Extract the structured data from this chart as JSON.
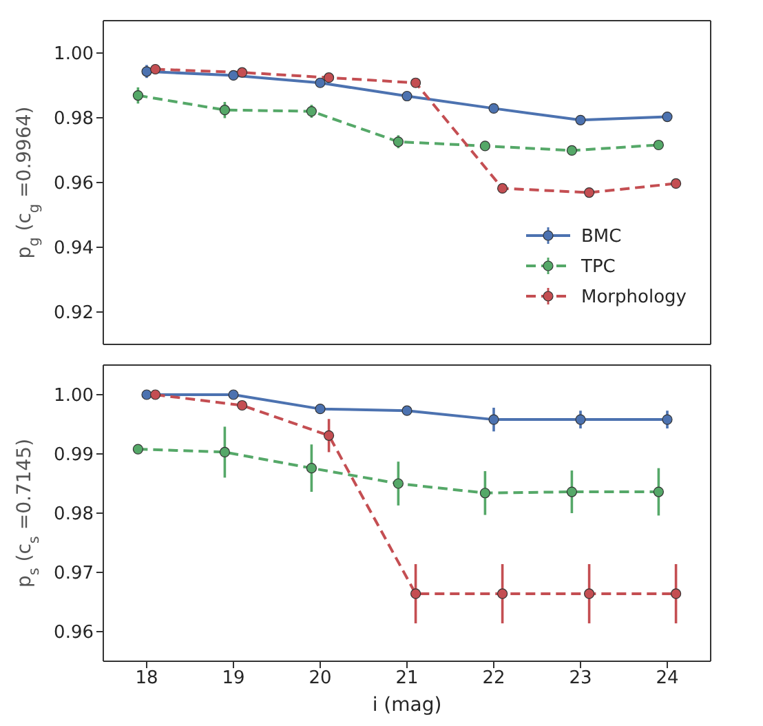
{
  "chart_data": [
    {
      "type": "line",
      "ylabel": "p$_{g}$ (c$_{g}$ =0.9964)",
      "xlim": [
        17.5,
        24.5
      ],
      "xticks": [
        18,
        19,
        20,
        21,
        22,
        23,
        24
      ],
      "ylim": [
        0.91,
        1.01
      ],
      "yticks": [
        0.92,
        0.94,
        0.96,
        0.98,
        {
          "value": 1,
          "label": "1.00"
        }
      ],
      "tick_labels": "y",
      "legend": "bottom right",
      "marker": "circle",
      "series": [
        {
          "name": "BMC",
          "color": "#4c72b0",
          "line_style": "solid",
          "x": [
            18,
            19,
            20,
            21,
            22,
            23,
            24
          ],
          "values": [
            0.9943,
            0.9931,
            0.9908,
            0.9867,
            0.9829,
            0.9793,
            0.9803
          ],
          "errors": [
            0.002,
            0.0015,
            0.001,
            0.001,
            0.001,
            0.001,
            0.001
          ]
        },
        {
          "name": "TPC",
          "color": "#55a868",
          "line_style": "dashed",
          "x": [
            17.9,
            18.9,
            19.9,
            20.9,
            21.9,
            22.9,
            23.9
          ],
          "values": [
            0.9869,
            0.9824,
            0.982,
            0.9726,
            0.9713,
            0.9699,
            0.9716
          ],
          "errors": [
            0.0025,
            0.0025,
            0.002,
            0.002,
            0.0015,
            0.001,
            0.001
          ]
        },
        {
          "name": "Morphology",
          "color": "#c44e52",
          "line_style": "dashed",
          "x": [
            18.1,
            19.1,
            20.1,
            21.1,
            22.1,
            23.1,
            24.1
          ],
          "values": [
            0.995,
            0.994,
            0.9924,
            0.9908,
            0.9582,
            0.9569,
            0.9597
          ],
          "errors": [
            0.0015,
            0.001,
            0.001,
            0.001,
            0.0015,
            0.0015,
            0.0015
          ]
        }
      ]
    },
    {
      "type": "line",
      "xlabel": "i (mag)",
      "ylabel": "p$_{s}$ (c$_{s}$ =0.7145)",
      "xlim": [
        17.5,
        24.5
      ],
      "xticks": [
        18,
        19,
        20,
        21,
        22,
        23,
        24
      ],
      "ylim": [
        0.955,
        1.005
      ],
      "yticks": [
        0.96,
        0.97,
        0.98,
        0.99,
        {
          "value": 1,
          "label": "1.00"
        }
      ],
      "legend": false,
      "marker": "circle",
      "series": [
        {
          "color": "#4c72b0",
          "line_style": "solid",
          "x": [
            18,
            19,
            20,
            21,
            22,
            23,
            24
          ],
          "values": [
            1.0,
            1.0,
            0.9976,
            0.9973,
            0.9958,
            0.9958,
            0.9958
          ],
          "errors": [
            0.0004,
            0.0004,
            0.0007,
            0.0006,
            0.002,
            0.0015,
            0.0015
          ]
        },
        {
          "color": "#55a868",
          "line_style": "dashed",
          "x": [
            17.9,
            18.9,
            19.9,
            20.9,
            21.9,
            22.9,
            23.9
          ],
          "values": [
            0.9908,
            0.9903,
            0.9876,
            0.985,
            0.9834,
            0.9836,
            0.9836
          ],
          "errors": [
            0.0007,
            0.0043,
            0.004,
            0.0037,
            0.0037,
            0.0036,
            0.004
          ]
        },
        {
          "color": "#c44e52",
          "line_style": "dashed",
          "x": [
            18.1,
            19.1,
            20.1,
            21.1,
            22.1,
            23.1,
            24.1
          ],
          "values": [
            1.0,
            0.9982,
            0.9931,
            0.9664,
            0.9664,
            0.9664,
            0.9664
          ],
          "errors": [
            0.0003,
            0.0005,
            0.0028,
            0.005,
            0.005,
            0.005,
            0.005
          ]
        }
      ]
    }
  ]
}
